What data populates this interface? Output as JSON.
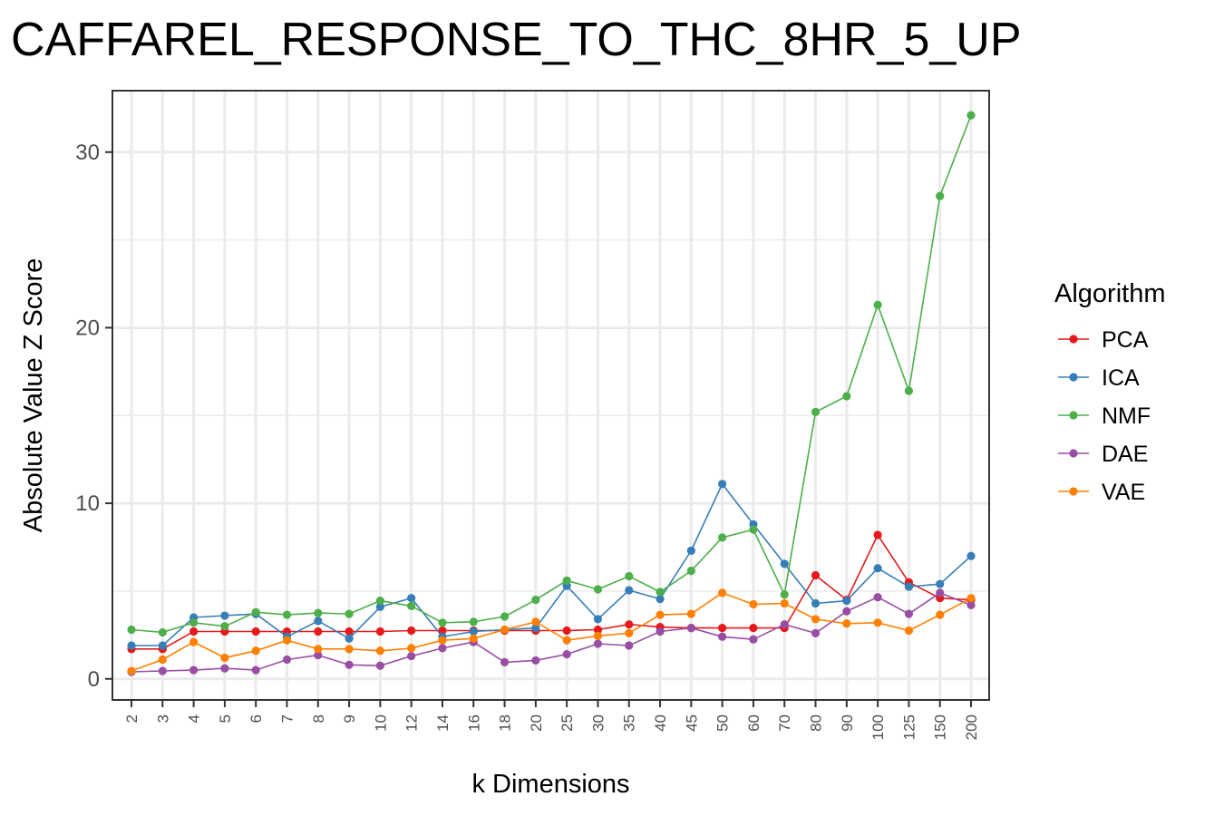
{
  "chart_data": {
    "type": "line",
    "title": "CAFFAREL_RESPONSE_TO_THC_8HR_5_UP",
    "xlabel": "k Dimensions",
    "ylabel": "Absolute Value Z Score",
    "ylim": [
      -1.2,
      33.5
    ],
    "yticks": [
      "0",
      "10",
      "20",
      "30"
    ],
    "grid": true,
    "legend_title": "Algorithm",
    "legend_position": "right",
    "categories": [
      "2",
      "3",
      "4",
      "5",
      "6",
      "7",
      "8",
      "9",
      "10",
      "12",
      "14",
      "16",
      "18",
      "20",
      "25",
      "30",
      "35",
      "40",
      "45",
      "50",
      "60",
      "70",
      "80",
      "90",
      "100",
      "125",
      "150",
      "200"
    ],
    "series": [
      {
        "name": "PCA",
        "color": "#E41A1C",
        "values": [
          1.7,
          1.7,
          2.7,
          2.7,
          2.7,
          2.7,
          2.7,
          2.7,
          2.7,
          2.75,
          2.75,
          2.75,
          2.75,
          2.75,
          2.75,
          2.8,
          3.1,
          2.95,
          2.9,
          2.9,
          2.9,
          2.9,
          5.9,
          4.5,
          8.2,
          5.5,
          4.6,
          4.5
        ]
      },
      {
        "name": "ICA",
        "color": "#377EB8",
        "values": [
          1.9,
          1.9,
          3.5,
          3.6,
          3.7,
          2.4,
          3.3,
          2.3,
          4.1,
          4.6,
          2.4,
          2.7,
          2.8,
          2.9,
          5.3,
          3.4,
          5.05,
          4.55,
          7.3,
          11.1,
          8.8,
          6.55,
          4.3,
          4.45,
          6.3,
          5.25,
          5.4,
          7.0
        ]
      },
      {
        "name": "NMF",
        "color": "#4DAF4A",
        "values": [
          2.8,
          2.65,
          3.2,
          3.0,
          3.8,
          3.65,
          3.75,
          3.7,
          4.45,
          4.15,
          3.2,
          3.25,
          3.55,
          4.5,
          5.6,
          5.1,
          5.85,
          4.95,
          6.15,
          8.05,
          8.5,
          4.8,
          15.2,
          16.1,
          21.3,
          16.4,
          27.5,
          32.1
        ]
      },
      {
        "name": "DAE",
        "color": "#984EA3",
        "values": [
          0.4,
          0.45,
          0.5,
          0.6,
          0.5,
          1.1,
          1.35,
          0.8,
          0.75,
          1.3,
          1.75,
          2.1,
          0.95,
          1.05,
          1.4,
          2.0,
          1.9,
          2.7,
          2.9,
          2.4,
          2.25,
          3.1,
          2.6,
          3.85,
          4.65,
          3.7,
          4.9,
          4.2
        ]
      },
      {
        "name": "VAE",
        "color": "#FF7F00",
        "values": [
          0.45,
          1.1,
          2.1,
          1.2,
          1.6,
          2.2,
          1.7,
          1.7,
          1.6,
          1.75,
          2.2,
          2.3,
          2.8,
          3.25,
          2.2,
          2.45,
          2.6,
          3.65,
          3.7,
          4.9,
          4.25,
          4.3,
          3.4,
          3.15,
          3.2,
          2.75,
          3.65,
          4.6
        ]
      }
    ]
  }
}
